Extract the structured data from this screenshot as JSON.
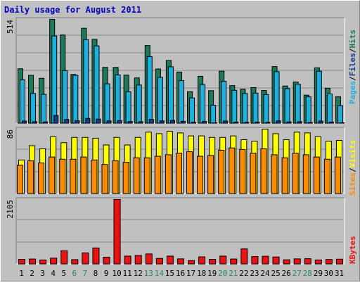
{
  "title": "Daily usage for August 2011",
  "colors": {
    "background": "#c0c0c0",
    "title": "#0000c0",
    "hits": "#1a7a5a",
    "files": "#1ab0e0",
    "pages": "#103f8f",
    "visits": "#ffff00",
    "sites": "#ff8c00",
    "kbytes": "#ee1111",
    "weekend": "#2a8a5a",
    "weekday": "#000000"
  },
  "chart_data": [
    {
      "type": "bar",
      "title": "Daily usage for August 2011",
      "ymax_label": "514",
      "legend": [
        "Pages",
        "Files",
        "Hits"
      ],
      "categories": [
        "1",
        "2",
        "3",
        "4",
        "5",
        "6",
        "7",
        "8",
        "9",
        "10",
        "11",
        "12",
        "13",
        "14",
        "15",
        "16",
        "17",
        "18",
        "19",
        "20",
        "21",
        "22",
        "23",
        "24",
        "25",
        "26",
        "27",
        "28",
        "29",
        "30",
        "31"
      ],
      "weekend_days": [
        "6",
        "7",
        "13",
        "14",
        "20",
        "21",
        "27",
        "28"
      ],
      "ylim": [
        0,
        514
      ],
      "series": [
        {
          "name": "Hits",
          "values": [
            270,
            238,
            223,
            514,
            437,
            242,
            470,
            415,
            277,
            277,
            239,
            225,
            385,
            269,
            311,
            254,
            157,
            233,
            162,
            258,
            187,
            169,
            177,
            163,
            281,
            185,
            205,
            140,
            275,
            174,
            132
          ]
        },
        {
          "name": "Files",
          "values": [
            216,
            148,
            144,
            432,
            261,
            238,
            414,
            383,
            196,
            240,
            157,
            190,
            330,
            228,
            280,
            212,
            126,
            192,
            90,
            208,
            164,
            148,
            150,
            143,
            256,
            172,
            194,
            132,
            258,
            146,
            88
          ]
        },
        {
          "name": "Pages",
          "values": [
            12,
            9,
            8,
            40,
            20,
            14,
            25,
            22,
            13,
            14,
            10,
            9,
            20,
            13,
            15,
            11,
            6,
            10,
            4,
            12,
            7,
            6,
            7,
            6,
            13,
            8,
            9,
            5,
            12,
            7,
            4
          ]
        }
      ]
    },
    {
      "type": "bar",
      "ymax_label": "86",
      "legend": [
        "Sites",
        "Visits"
      ],
      "categories": [
        "1",
        "2",
        "3",
        "4",
        "5",
        "6",
        "7",
        "8",
        "9",
        "10",
        "11",
        "12",
        "13",
        "14",
        "15",
        "16",
        "17",
        "18",
        "19",
        "20",
        "21",
        "22",
        "23",
        "24",
        "25",
        "26",
        "27",
        "28",
        "29",
        "30",
        "31"
      ],
      "ylim": [
        0,
        86
      ],
      "series": [
        {
          "name": "Visits",
          "values": [
            45,
            64,
            60,
            76,
            68,
            75,
            75,
            74,
            65,
            75,
            65,
            75,
            82,
            80,
            83,
            81,
            77,
            77,
            75,
            75,
            77,
            72,
            70,
            86,
            80,
            72,
            82,
            81,
            76,
            70,
            71
          ]
        },
        {
          "name": "Sites",
          "values": [
            38,
            44,
            41,
            49,
            46,
            46,
            49,
            45,
            39,
            44,
            42,
            48,
            48,
            50,
            52,
            54,
            56,
            50,
            51,
            58,
            61,
            59,
            54,
            60,
            52,
            48,
            54,
            52,
            49,
            46,
            49
          ]
        }
      ]
    },
    {
      "type": "bar",
      "ymax_label": "2105",
      "legend": [
        "KBytes"
      ],
      "categories": [
        "1",
        "2",
        "3",
        "4",
        "5",
        "6",
        "7",
        "8",
        "9",
        "10",
        "11",
        "12",
        "13",
        "14",
        "15",
        "16",
        "17",
        "18",
        "19",
        "20",
        "21",
        "22",
        "23",
        "24",
        "25",
        "26",
        "27",
        "28",
        "29",
        "30",
        "31"
      ],
      "ylim": [
        0,
        2105
      ],
      "series": [
        {
          "name": "KBytes",
          "values": [
            160,
            170,
            140,
            200,
            440,
            150,
            370,
            530,
            230,
            2105,
            265,
            285,
            335,
            190,
            265,
            175,
            120,
            240,
            160,
            265,
            170,
            500,
            250,
            260,
            235,
            145,
            175,
            180,
            140,
            155,
            165
          ]
        }
      ]
    }
  ]
}
